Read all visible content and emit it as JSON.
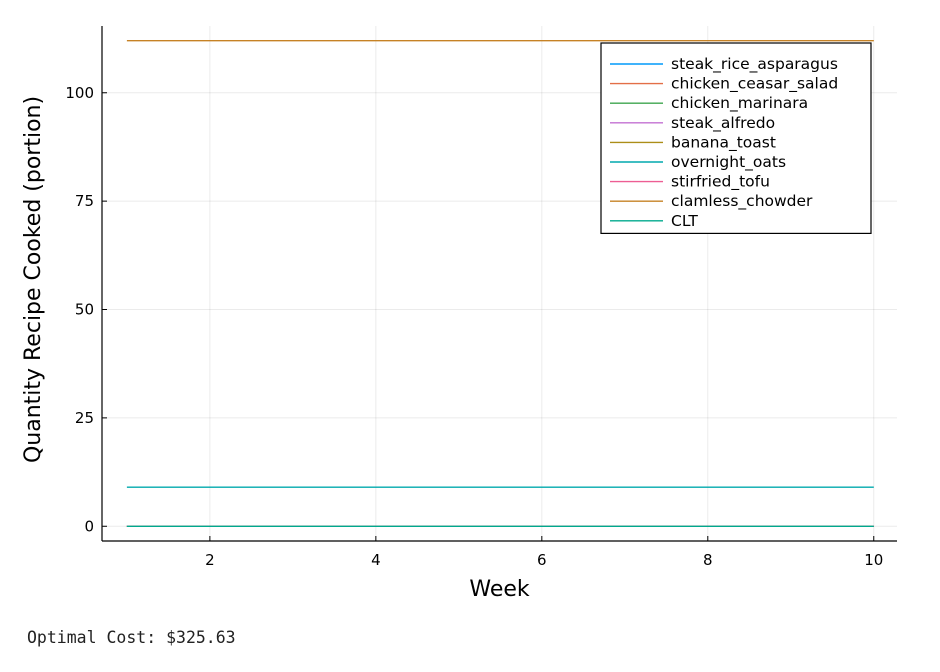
{
  "chart_data": {
    "type": "line",
    "xlabel": "Week",
    "ylabel": "Quantity Recipe Cooked (portion)",
    "xlim": [
      0.7,
      10.28
    ],
    "ylim": [
      -3.4,
      115.4
    ],
    "xticks": [
      2,
      4,
      6,
      8,
      10
    ],
    "yticks": [
      0,
      25,
      50,
      75,
      100
    ],
    "grid": true,
    "legend_position": "top-right",
    "x": [
      1,
      2,
      3,
      4,
      5,
      6,
      7,
      8,
      9,
      10
    ],
    "series": [
      {
        "name": "steak_rice_asparagus",
        "color": "#009AFA",
        "values": [
          0,
          0,
          0,
          0,
          0,
          0,
          0,
          0,
          0,
          0
        ]
      },
      {
        "name": "chicken_ceasar_salad",
        "color": "#E36F47",
        "values": [
          0,
          0,
          0,
          0,
          0,
          0,
          0,
          0,
          0,
          0
        ]
      },
      {
        "name": "chicken_marinara",
        "color": "#3EA44E",
        "values": [
          0,
          0,
          0,
          0,
          0,
          0,
          0,
          0,
          0,
          0
        ]
      },
      {
        "name": "steak_alfredo",
        "color": "#C371D2",
        "values": [
          0,
          0,
          0,
          0,
          0,
          0,
          0,
          0,
          0,
          0
        ]
      },
      {
        "name": "banana_toast",
        "color": "#AC8E18",
        "values": [
          0,
          0,
          0,
          0,
          0,
          0,
          0,
          0,
          0,
          0
        ]
      },
      {
        "name": "overnight_oats",
        "color": "#00A9AD",
        "values": [
          9,
          9,
          9,
          9,
          9,
          9,
          9,
          9,
          9,
          9
        ]
      },
      {
        "name": "stirfried_tofu",
        "color": "#ED5E93",
        "values": [
          0,
          0,
          0,
          0,
          0,
          0,
          0,
          0,
          0,
          0
        ]
      },
      {
        "name": "clamless_chowder",
        "color": "#C68225",
        "values": [
          112,
          112,
          112,
          112,
          112,
          112,
          112,
          112,
          112,
          112
        ]
      },
      {
        "name": "CLT",
        "color": "#00A98D",
        "values": [
          0,
          0,
          0,
          0,
          0,
          0,
          0,
          0,
          0,
          0
        ]
      }
    ]
  },
  "caption": "Optimal Cost: $325.63"
}
